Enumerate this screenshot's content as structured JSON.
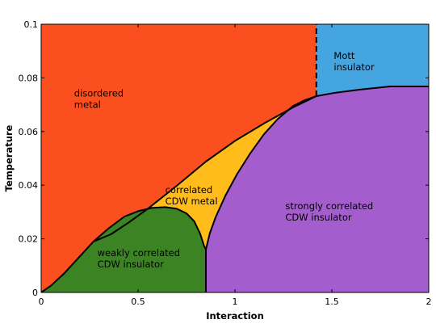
{
  "chart_data": {
    "type": "area",
    "title": "",
    "xlabel": "Interaction",
    "ylabel": "Temperature",
    "xlim": [
      0,
      2
    ],
    "ylim": [
      0,
      0.1
    ],
    "xticks": [
      0,
      0.5,
      1,
      1.5,
      2
    ],
    "xtick_labels": [
      "0",
      "0.5",
      "1",
      "1.5",
      "2"
    ],
    "yticks": [
      0,
      0.02,
      0.04,
      0.06,
      0.08,
      0.1
    ],
    "ytick_labels": [
      "0",
      "0.02",
      "0.04",
      "0.06",
      "0.08",
      "0.1"
    ],
    "grid": false,
    "legend": "none",
    "regions": [
      {
        "name": "disordered-metal",
        "label_lines": [
          "disordered",
          "metal"
        ],
        "label_at": [
          0.17,
          0.073
        ],
        "color": "#fc4f1f"
      },
      {
        "name": "mott-insulator",
        "label_lines": [
          "Mott",
          "insulator"
        ],
        "label_at": [
          1.51,
          0.087
        ],
        "color": "#45a5e1",
        "boundary": [
          [
            1.42,
            0.1
          ],
          [
            2.0,
            0.1
          ],
          [
            2.0,
            0.0768
          ],
          [
            1.8,
            0.0768
          ],
          [
            1.65,
            0.0757
          ],
          [
            1.52,
            0.0745
          ],
          [
            1.42,
            0.0732
          ]
        ]
      },
      {
        "name": "correlated-cdw-metal",
        "label_lines": [
          "correlated",
          "CDW metal"
        ],
        "label_at": [
          0.64,
          0.037
        ],
        "color": "#ffbc1b",
        "boundary": [
          [
            0.27,
            0.019
          ],
          [
            0.35,
            0.024
          ],
          [
            0.43,
            0.0283
          ],
          [
            0.5,
            0.0303
          ],
          [
            0.57,
            0.0315
          ],
          [
            0.64,
            0.0318
          ],
          [
            0.7,
            0.0312
          ],
          [
            0.75,
            0.0295
          ],
          [
            0.79,
            0.0265
          ],
          [
            0.82,
            0.022
          ],
          [
            0.84,
            0.0175
          ],
          [
            0.85,
            0.016
          ],
          [
            0.87,
            0.022
          ],
          [
            0.9,
            0.028
          ],
          [
            0.95,
            0.036
          ],
          [
            1.01,
            0.044
          ],
          [
            1.08,
            0.052
          ],
          [
            1.15,
            0.059
          ],
          [
            1.22,
            0.0646
          ],
          [
            1.3,
            0.0695
          ],
          [
            1.36,
            0.0717
          ],
          [
            1.42,
            0.0732
          ],
          [
            1.3,
            0.069
          ],
          [
            1.15,
            0.063
          ],
          [
            1.0,
            0.0565
          ],
          [
            0.85,
            0.0488
          ],
          [
            0.7,
            0.0398
          ],
          [
            0.55,
            0.0312
          ],
          [
            0.45,
            0.026
          ],
          [
            0.36,
            0.0217
          ]
        ]
      },
      {
        "name": "weakly-correlated-cdw-insulator",
        "label_lines": [
          "weakly correlated",
          "CDW insulator"
        ],
        "label_at": [
          0.29,
          0.0135
        ],
        "color": "#3b8323",
        "boundary": [
          [
            0.0,
            0.0
          ],
          [
            0.05,
            0.0025
          ],
          [
            0.12,
            0.0072
          ],
          [
            0.2,
            0.0135
          ],
          [
            0.27,
            0.019
          ],
          [
            0.35,
            0.024
          ],
          [
            0.43,
            0.0283
          ],
          [
            0.5,
            0.0303
          ],
          [
            0.57,
            0.0315
          ],
          [
            0.64,
            0.0318
          ],
          [
            0.7,
            0.0312
          ],
          [
            0.75,
            0.0295
          ],
          [
            0.79,
            0.0265
          ],
          [
            0.82,
            0.022
          ],
          [
            0.84,
            0.0175
          ],
          [
            0.85,
            0.016
          ],
          [
            0.85,
            0.0
          ]
        ]
      },
      {
        "name": "strongly-correlated-cdw-insulator",
        "label_lines": [
          "strongly correlated",
          "CDW insulator"
        ],
        "label_at": [
          1.26,
          0.031
        ],
        "color": "#a45dcd",
        "boundary": [
          [
            0.85,
            0.0
          ],
          [
            2.0,
            0.0
          ],
          [
            2.0,
            0.0768
          ],
          [
            1.8,
            0.0768
          ],
          [
            1.65,
            0.0757
          ],
          [
            1.52,
            0.0745
          ],
          [
            1.42,
            0.0732
          ],
          [
            1.36,
            0.0717
          ],
          [
            1.3,
            0.0695
          ],
          [
            1.22,
            0.0646
          ],
          [
            1.15,
            0.059
          ],
          [
            1.08,
            0.052
          ],
          [
            1.01,
            0.044
          ],
          [
            0.95,
            0.036
          ],
          [
            0.9,
            0.028
          ],
          [
            0.87,
            0.022
          ],
          [
            0.85,
            0.016
          ]
        ]
      }
    ],
    "boundary_lines": [
      {
        "name": "metal-boundary",
        "style": "solid",
        "points": [
          [
            0.0,
            0.0
          ],
          [
            0.05,
            0.0025
          ],
          [
            0.12,
            0.0072
          ],
          [
            0.2,
            0.0135
          ],
          [
            0.27,
            0.019
          ],
          [
            0.36,
            0.0217
          ],
          [
            0.45,
            0.026
          ],
          [
            0.55,
            0.0312
          ],
          [
            0.7,
            0.0398
          ],
          [
            0.85,
            0.0488
          ],
          [
            1.0,
            0.0565
          ],
          [
            1.15,
            0.063
          ],
          [
            1.3,
            0.069
          ],
          [
            1.42,
            0.0732
          ]
        ]
      },
      {
        "name": "weak-insulator-dome",
        "style": "solid",
        "points": [
          [
            0.27,
            0.019
          ],
          [
            0.35,
            0.024
          ],
          [
            0.43,
            0.0283
          ],
          [
            0.5,
            0.0303
          ],
          [
            0.57,
            0.0315
          ],
          [
            0.64,
            0.0318
          ],
          [
            0.7,
            0.0312
          ],
          [
            0.75,
            0.0295
          ],
          [
            0.79,
            0.0265
          ],
          [
            0.82,
            0.022
          ],
          [
            0.84,
            0.0175
          ],
          [
            0.85,
            0.016
          ]
        ]
      },
      {
        "name": "strong-insulator-boundary",
        "style": "solid",
        "points": [
          [
            0.85,
            0.016
          ],
          [
            0.87,
            0.022
          ],
          [
            0.9,
            0.028
          ],
          [
            0.95,
            0.036
          ],
          [
            1.01,
            0.044
          ],
          [
            1.08,
            0.052
          ],
          [
            1.15,
            0.059
          ],
          [
            1.22,
            0.0646
          ],
          [
            1.3,
            0.0695
          ],
          [
            1.36,
            0.0717
          ],
          [
            1.42,
            0.0732
          ],
          [
            1.52,
            0.0745
          ],
          [
            1.65,
            0.0757
          ],
          [
            1.8,
            0.0768
          ],
          [
            2.0,
            0.0768
          ]
        ]
      },
      {
        "name": "insulator-divider",
        "style": "solid",
        "points": [
          [
            0.85,
            0.0
          ],
          [
            0.85,
            0.016
          ]
        ]
      },
      {
        "name": "mott-divider",
        "style": "dashed",
        "points": [
          [
            1.42,
            0.0732
          ],
          [
            1.42,
            0.1
          ]
        ]
      }
    ]
  }
}
